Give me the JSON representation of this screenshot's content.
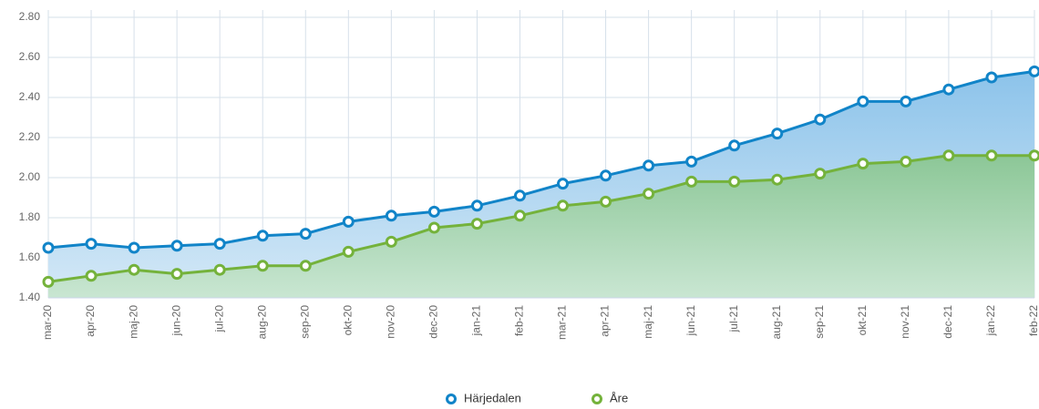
{
  "chart_data": {
    "type": "area",
    "categories": [
      "mar-20",
      "apr-20",
      "maj-20",
      "jun-20",
      "jul-20",
      "aug-20",
      "sep-20",
      "okt-20",
      "nov-20",
      "dec-20",
      "jan-21",
      "feb-21",
      "mar-21",
      "apr-21",
      "maj-21",
      "jun-21",
      "jul-21",
      "aug-21",
      "sep-21",
      "okt-21",
      "nov-21",
      "dec-21",
      "jan-22",
      "feb-22"
    ],
    "series": [
      {
        "name": "Härjedalen",
        "color": "#1184c8",
        "values": [
          1.65,
          1.67,
          1.65,
          1.66,
          1.67,
          1.71,
          1.72,
          1.78,
          1.81,
          1.83,
          1.86,
          1.91,
          1.97,
          2.01,
          2.06,
          2.08,
          2.16,
          2.22,
          2.29,
          2.38,
          2.38,
          2.44,
          2.5,
          2.53
        ]
      },
      {
        "name": "Åre",
        "color": "#74b23b",
        "values": [
          1.48,
          1.51,
          1.54,
          1.52,
          1.54,
          1.56,
          1.56,
          1.63,
          1.68,
          1.75,
          1.77,
          1.81,
          1.86,
          1.88,
          1.92,
          1.98,
          1.98,
          1.99,
          2.02,
          2.07,
          2.08,
          2.11,
          2.11,
          2.11
        ]
      }
    ],
    "ylim": [
      1.4,
      2.8
    ],
    "yticks": [
      {
        "value": 1.4,
        "label": "1.40"
      },
      {
        "value": 1.6,
        "label": "1.60"
      },
      {
        "value": 1.8,
        "label": "1.80"
      },
      {
        "value": 2.0,
        "label": "2.00"
      },
      {
        "value": 2.2,
        "label": "2.20"
      },
      {
        "value": 2.4,
        "label": "2.40"
      },
      {
        "value": 2.6,
        "label": "2.60"
      },
      {
        "value": 2.8,
        "label": "2.80"
      }
    ],
    "grid": true,
    "legend": "bottom"
  }
}
